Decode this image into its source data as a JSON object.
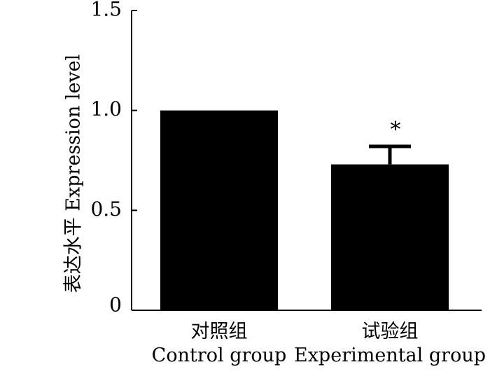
{
  "chart_data": {
    "type": "bar",
    "categories": [
      {
        "zh": "对照组",
        "en": "Control group"
      },
      {
        "zh": "试验组",
        "en": "Experimental group"
      }
    ],
    "values": [
      1.0,
      0.73
    ],
    "errors": [
      0,
      0.09
    ],
    "significance": [
      "",
      "*"
    ],
    "ylabel": "表达水平 Expression level",
    "ylim": [
      0,
      1.5
    ],
    "yticks": [
      0,
      0.5,
      1.0,
      1.5
    ],
    "ytick_labels": [
      "0",
      "0.5",
      "1.0",
      "1.5"
    ],
    "bar_color": "#000000",
    "grid": false,
    "legend": "none"
  }
}
